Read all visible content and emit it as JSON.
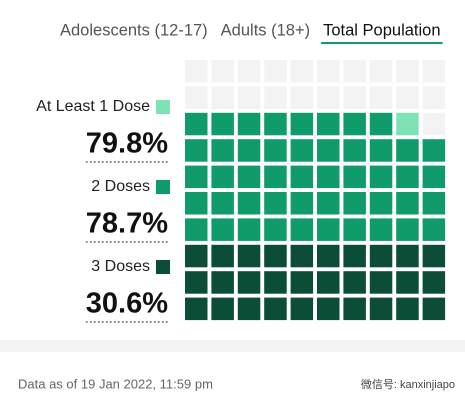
{
  "tabs": [
    "Adolescents (12-17)",
    "Adults (18+)",
    "Total Population"
  ],
  "active_tab": 2,
  "chart_data": {
    "type": "waffle",
    "rows": 10,
    "columns": 10,
    "empty_color": "#f3f3f3",
    "series": [
      {
        "name": "At Least 1 Dose",
        "color": "#7ee3b4",
        "values": [
          79.8
        ],
        "value_labels": [
          "79.8%"
        ]
      },
      {
        "name": "2 Doses",
        "color": "#0f9b6a",
        "values": [
          78.7
        ],
        "value_labels": [
          "78.7%"
        ]
      },
      {
        "name": "3 Doses",
        "color": "#0b4d36",
        "values": [
          30.6
        ],
        "value_labels": [
          "30.6%"
        ]
      }
    ]
  },
  "footer": "Data as of 19 Jan 2022, 11:59 pm",
  "watermark": "微信号: kanxinjiapo"
}
